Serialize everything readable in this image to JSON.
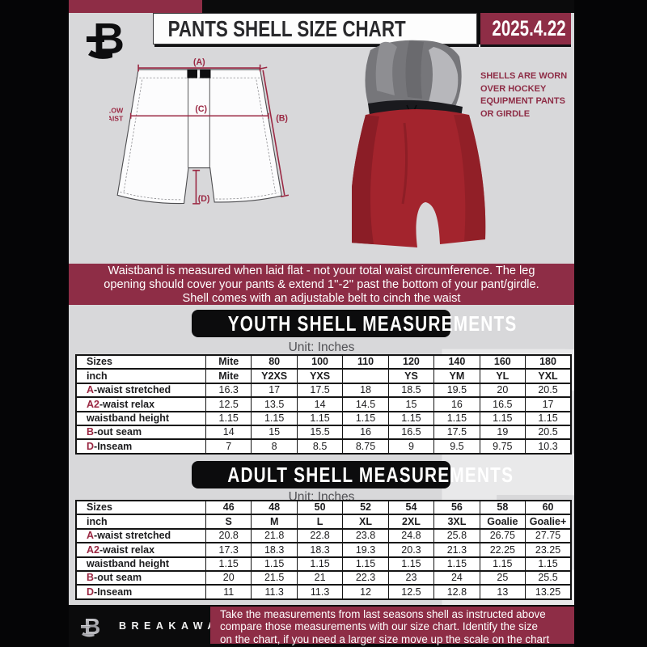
{
  "header": {
    "title": "PANTS SHELL SIZE CHART",
    "date": "2025.4.22"
  },
  "diagram": {
    "label_a": "(A)",
    "label_b": "(B)",
    "label_c": "(C)",
    "label_d": "(D)",
    "below_waist_line1": "7'' BELOW",
    "below_waist_line2": "WAIST",
    "side_note_lines": [
      "SHELLS ARE WORN",
      "OVER HOCKEY",
      "EQUIPMENT PANTS",
      "OR GIRDLE"
    ]
  },
  "banner": {
    "lines": [
      "Waistband is measured when laid flat - not your total waist circumference. The leg",
      "opening should cover your pants & extend 1''-2'' past the bottom of your pant/girdle.",
      "Shell comes with an adjustable belt to cinch the waist"
    ]
  },
  "youth": {
    "heading": "YOUTH SHELL MEASUREMENTS",
    "unit": "Unit: Inches",
    "table": {
      "header": {
        "label": "Sizes",
        "values": [
          "Mite",
          "80",
          "100",
          "110",
          "120",
          "140",
          "160",
          "180"
        ]
      },
      "rows": [
        {
          "prefix": "",
          "label": "inch",
          "bold": true,
          "values": [
            "Mite",
            "Y2XS",
            "YXS",
            "",
            "YS",
            "YM",
            "YL",
            "YXL"
          ]
        },
        {
          "prefix": "A",
          "label": "-waist stretched",
          "bold": false,
          "values": [
            "16.3",
            "17",
            "17.5",
            "18",
            "18.5",
            "19.5",
            "20",
            "20.5"
          ]
        },
        {
          "prefix": "A2",
          "label": "-waist relax",
          "bold": false,
          "values": [
            "12.5",
            "13.5",
            "14",
            "14.5",
            "15",
            "16",
            "16.5",
            "17"
          ]
        },
        {
          "prefix": "",
          "label": "waistband height",
          "bold": false,
          "values": [
            "1.15",
            "1.15",
            "1.15",
            "1.15",
            "1.15",
            "1.15",
            "1.15",
            "1.15"
          ]
        },
        {
          "prefix": "B",
          "label": "-out seam",
          "bold": false,
          "values": [
            "14",
            "15",
            "15.5",
            "16",
            "16.5",
            "17.5",
            "19",
            "20.5"
          ]
        },
        {
          "prefix": "D",
          "label": "-Inseam",
          "bold": false,
          "values": [
            "7",
            "8",
            "8.5",
            "8.75",
            "9",
            "9.5",
            "9.75",
            "10.3"
          ]
        }
      ]
    }
  },
  "adult": {
    "heading": "ADULT SHELL MEASUREMENTS",
    "unit": "Unit: Inches",
    "table": {
      "header": {
        "label": "Sizes",
        "values": [
          "46",
          "48",
          "50",
          "52",
          "54",
          "56",
          "58",
          "60"
        ]
      },
      "rows": [
        {
          "prefix": "",
          "label": "inch",
          "bold": true,
          "values": [
            "S",
            "M",
            "L",
            "XL",
            "2XL",
            "3XL",
            "Goalie",
            "Goalie+"
          ]
        },
        {
          "prefix": "A",
          "label": "-waist stretched",
          "bold": false,
          "values": [
            "20.8",
            "21.8",
            "22.8",
            "23.8",
            "24.8",
            "25.8",
            "26.75",
            "27.75"
          ]
        },
        {
          "prefix": "A2",
          "label": "-waist relax",
          "bold": false,
          "values": [
            "17.3",
            "18.3",
            "18.3",
            "19.3",
            "20.3",
            "21.3",
            "22.25",
            "23.25"
          ]
        },
        {
          "prefix": "",
          "label": "waistband height",
          "bold": false,
          "values": [
            "1.15",
            "1.15",
            "1.15",
            "1.15",
            "1.15",
            "1.15",
            "1.15",
            "1.15"
          ]
        },
        {
          "prefix": "B",
          "label": "-out seam",
          "bold": false,
          "values": [
            "20",
            "21.5",
            "21",
            "22.3",
            "23",
            "24",
            "25",
            "25.5"
          ]
        },
        {
          "prefix": "D",
          "label": "-Inseam",
          "bold": false,
          "values": [
            "11",
            "11.3",
            "11.3",
            "12",
            "12.5",
            "12.8",
            "13",
            "13.25"
          ]
        }
      ]
    }
  },
  "footer": {
    "brand": "BREAKAWAY",
    "lines": [
      "Take the measurements from last seasons shell as instructed above",
      "compare those measurements  with our size chart. Identify the size",
      "on the chart, if you need a larger size move up the scale on the chart"
    ]
  },
  "colors": {
    "maroon": "#8e2d46",
    "diagram_accent": "#9a2742",
    "page_gray": "#d8d8da",
    "black": "#0b0b0c"
  }
}
